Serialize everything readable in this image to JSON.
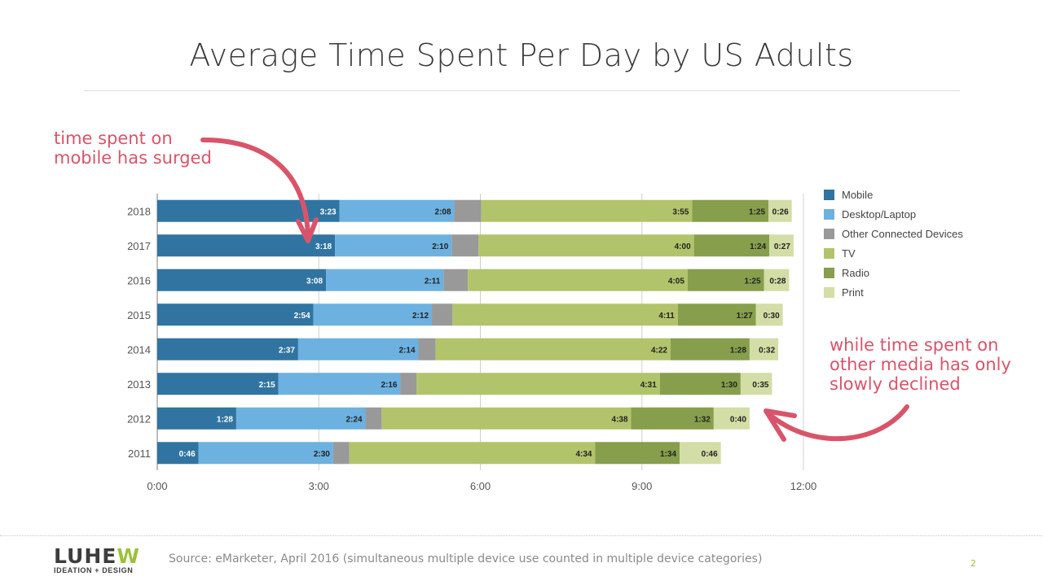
{
  "slide": {
    "title": "Average Time Spent Per Day by US Adults",
    "annotation_left": "time spent on\nmobile has surged",
    "annotation_right": "while time spent on\nother media has only\nslowly declined",
    "source": "Source: eMarketer, April 2016 (simultaneous multiple device use counted in multiple device categories)",
    "page_number": "2",
    "logo_word_main": "LUHE",
    "logo_word_accent": "W",
    "logo_tagline": "IDEATION + DESIGN"
  },
  "colors": {
    "annotation": "#d9546a",
    "accent": "#9ec13d"
  },
  "chart_data": {
    "type": "bar",
    "orientation": "horizontal",
    "stacked": true,
    "units": "hours:minutes per day",
    "categories": [
      "2018",
      "2017",
      "2016",
      "2015",
      "2014",
      "2013",
      "2012",
      "2011"
    ],
    "xlim": [
      0,
      12
    ],
    "xticks": [
      {
        "value": 0,
        "label": "0:00"
      },
      {
        "value": 3,
        "label": "3:00"
      },
      {
        "value": 6,
        "label": "6:00"
      },
      {
        "value": 9,
        "label": "9:00"
      },
      {
        "value": 12,
        "label": "12:00"
      }
    ],
    "grid": true,
    "legend_position": "right",
    "series": [
      {
        "name": "Mobile",
        "color": "#3174a1",
        "values": [
          "3:23",
          "3:18",
          "3:08",
          "2:54",
          "2:37",
          "2:15",
          "1:28",
          "0:46"
        ],
        "labels_shown": true
      },
      {
        "name": "Desktop/Laptop",
        "color": "#6db1e0",
        "values": [
          "2:08",
          "2:10",
          "2:11",
          "2:12",
          "2:14",
          "2:16",
          "2:24",
          "2:30"
        ],
        "labels_shown": true
      },
      {
        "name": "Other Connected Devices",
        "color": "#999999",
        "values": [
          "0:30",
          "0:30",
          "0:27",
          "0:23",
          "0:19",
          "0:18",
          "0:18",
          "0:18"
        ],
        "labels_shown": false
      },
      {
        "name": "TV",
        "color": "#b1c46b",
        "values": [
          "3:55",
          "4:00",
          "4:05",
          "4:11",
          "4:22",
          "4:31",
          "4:38",
          "4:34"
        ],
        "labels_shown": true
      },
      {
        "name": "Radio",
        "color": "#879e4c",
        "values": [
          "1:25",
          "1:24",
          "1:25",
          "1:27",
          "1:28",
          "1:30",
          "1:32",
          "1:34"
        ],
        "labels_shown": true
      },
      {
        "name": "Print",
        "color": "#d3dda6",
        "values": [
          "0:26",
          "0:27",
          "0:28",
          "0:30",
          "0:32",
          "0:35",
          "0:40",
          "0:46"
        ],
        "labels_shown": true
      }
    ]
  }
}
